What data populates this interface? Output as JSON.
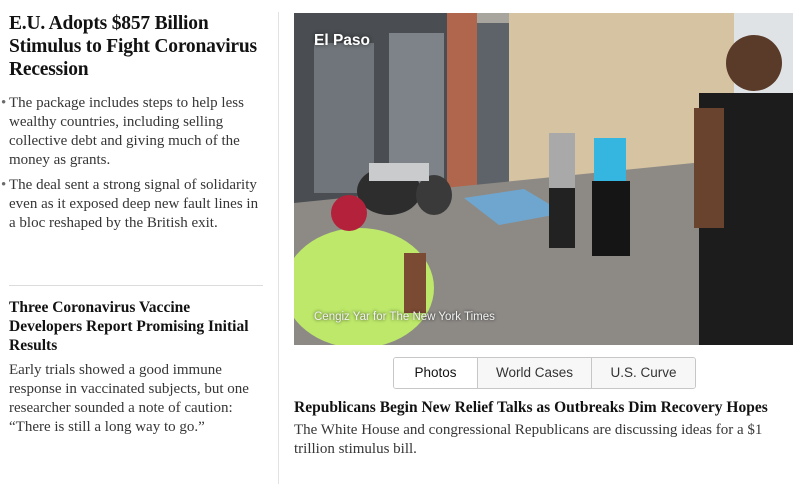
{
  "lead_story": {
    "headline": "E.U. Adopts $857 Billion Stimulus to Fight Coronavirus Recession",
    "bullets": [
      "The package includes steps to help less wealthy countries, including selling collective debt and giving much of the money as grants.",
      "The deal sent a strong signal of solidarity even as it exposed deep new fault lines in a bloc reshaped by the British exit."
    ]
  },
  "second_story": {
    "headline": "Three Coronavirus Vaccine Developers Report Promising Initial Results",
    "summary": "Early trials showed a good immune response in vaccinated subjects, but one researcher sounded a note of caution: “There is still a long way to go.”"
  },
  "photo": {
    "location_label": "El Paso",
    "credit": "Cengiz Yar for The New York Times"
  },
  "tabs": [
    {
      "label": "Photos",
      "active": true
    },
    {
      "label": "World Cases",
      "active": false
    },
    {
      "label": "U.S. Curve",
      "active": false
    }
  ],
  "third_story": {
    "headline": "Republicans Begin New Relief Talks as Outbreaks Dim Recovery Hopes",
    "summary": "The White House and congressional Republicans are discussing ideas for a $1 trillion stimulus bill."
  }
}
